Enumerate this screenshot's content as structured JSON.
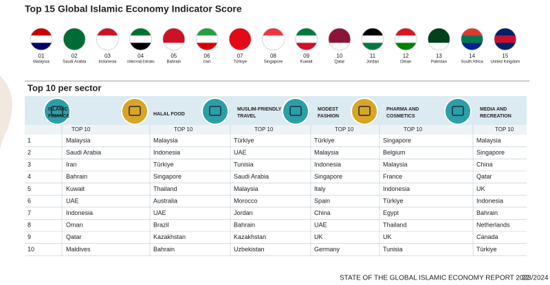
{
  "title": "Top 15 Global Islamic Economy Indicator Score",
  "countries": [
    {
      "rank": "01",
      "name": "Malaysia"
    },
    {
      "rank": "02",
      "name": "Saudi Arabia"
    },
    {
      "rank": "03",
      "name": "Indonesia"
    },
    {
      "rank": "04",
      "name": "United Arab Emirates"
    },
    {
      "rank": "05",
      "name": "Bahrain"
    },
    {
      "rank": "06",
      "name": "Iran"
    },
    {
      "rank": "07",
      "name": "Türkiye"
    },
    {
      "rank": "08",
      "name": "Singapore"
    },
    {
      "rank": "09",
      "name": "Kuwait"
    },
    {
      "rank": "10",
      "name": "Qatar"
    },
    {
      "rank": "11",
      "name": "Jordan"
    },
    {
      "rank": "12",
      "name": "Oman"
    },
    {
      "rank": "13",
      "name": "Pakistan"
    },
    {
      "rank": "14",
      "name": "South Africa"
    },
    {
      "rank": "15",
      "name": "United Kingdom"
    }
  ],
  "section_title": "Top 10 per sector",
  "sectors": [
    "ISLAMIC FINANCE",
    "HALAL FOOD",
    "MUSLIM-FRIENDLY TRAVEL",
    "MODEST FASHION",
    "PHARMA AND COSMETICS",
    "MEDIA AND RECREATION"
  ],
  "top_label": "TOP 10",
  "table": {
    "rows": [
      [
        "1",
        "Malaysia",
        "Malaysia",
        "Türkiye",
        "Türkiye",
        "Singapore",
        "Malaysia"
      ],
      [
        "2",
        "Saudi Arabia",
        "Indonesia",
        "UAE",
        "Malaysia",
        "Belgium",
        "Singapore"
      ],
      [
        "3",
        "Iran",
        "Türkiye",
        "Tunisia",
        "Indonesia",
        "Malaysia",
        "China"
      ],
      [
        "4",
        "Bahrain",
        "Singapore",
        "Saudi Arabia",
        "Singapore",
        "France",
        "Qatar"
      ],
      [
        "5",
        "Kuwait",
        "Thailand",
        "Malaysia",
        "Italy",
        "Indonesia",
        "UK"
      ],
      [
        "6",
        "UAE",
        "Australia",
        "Morocco",
        "Spain",
        "Türkiye",
        "Indonesia"
      ],
      [
        "7",
        "Indonesia",
        "UAE",
        "Jordan",
        "China",
        "Egypt",
        "Bahrain"
      ],
      [
        "8",
        "Oman",
        "Brazil",
        "Bahrain",
        "UAE",
        "Thailand",
        "Netherlands"
      ],
      [
        "9",
        "Qatar",
        "Kazakhstan",
        "Kazakhstan",
        "UK",
        "UK",
        "Canada"
      ],
      [
        "10",
        "Maldives",
        "Bahrain",
        "Uzbekistan",
        "Germany",
        "Tunisia",
        "Türkiye"
      ]
    ]
  },
  "footer": {
    "report": "STATE OF THE GLOBAL ISLAMIC ECONOMY REPORT 2023/2024",
    "page": "22"
  }
}
